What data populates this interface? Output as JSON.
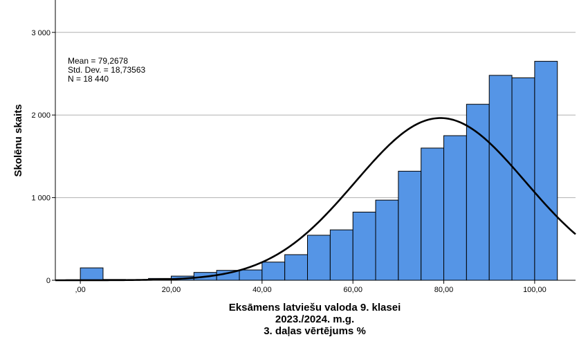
{
  "chart_data": {
    "type": "bar",
    "subtype": "histogram",
    "xlabel_lines": [
      "Eksāmens latviešu valoda 9. klasei",
      "2023./2024. m.g.",
      "3. daļas vērtējums %"
    ],
    "ylabel": "Skolēnu skaits",
    "x_tick_values": [
      0,
      20,
      40,
      60,
      80,
      100
    ],
    "x_tick_labels": [
      ",00",
      "20,00",
      "40,00",
      "60,00",
      "80,00",
      "100,00"
    ],
    "y_tick_values": [
      0,
      1000,
      2000,
      3000
    ],
    "y_tick_labels": [
      "0",
      "1 000",
      "2 000",
      "3 000"
    ],
    "xlim": [
      -5.5,
      109
    ],
    "ylim": [
      0,
      3350
    ],
    "bin_width": 5,
    "bins": [
      {
        "start": 0,
        "end": 5,
        "count": 150
      },
      {
        "start": 5,
        "end": 10,
        "count": 10
      },
      {
        "start": 10,
        "end": 15,
        "count": 8
      },
      {
        "start": 15,
        "end": 20,
        "count": 22
      },
      {
        "start": 20,
        "end": 25,
        "count": 50
      },
      {
        "start": 25,
        "end": 30,
        "count": 95
      },
      {
        "start": 30,
        "end": 35,
        "count": 120
      },
      {
        "start": 35,
        "end": 40,
        "count": 125
      },
      {
        "start": 40,
        "end": 45,
        "count": 220
      },
      {
        "start": 45,
        "end": 50,
        "count": 310
      },
      {
        "start": 50,
        "end": 55,
        "count": 545
      },
      {
        "start": 55,
        "end": 60,
        "count": 610
      },
      {
        "start": 60,
        "end": 65,
        "count": 825
      },
      {
        "start": 65,
        "end": 70,
        "count": 970
      },
      {
        "start": 70,
        "end": 75,
        "count": 1320
      },
      {
        "start": 75,
        "end": 80,
        "count": 1600
      },
      {
        "start": 80,
        "end": 85,
        "count": 1750
      },
      {
        "start": 85,
        "end": 90,
        "count": 2130
      },
      {
        "start": 90,
        "end": 95,
        "count": 2480
      },
      {
        "start": 95,
        "end": 100,
        "count": 2450
      },
      {
        "start": 100,
        "end": 105,
        "count": 2650
      }
    ],
    "normal_curve": {
      "mean": 79.2678,
      "std_dev": 18.73563,
      "n": 18440
    },
    "annotation_lines": [
      "Mean = 79,2678",
      "Std. Dev. = 18,73563",
      "N = 18 440"
    ],
    "grid": "horizontal",
    "colors": {
      "bar_fill": "#5595e6",
      "bar_stroke": "#000000",
      "curve": "#000000",
      "grid": "#b0b0b0"
    }
  }
}
